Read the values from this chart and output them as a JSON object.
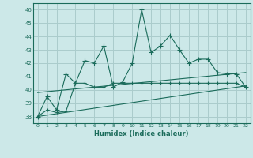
{
  "title": "",
  "xlabel": "Humidex (Indice chaleur)",
  "bg_color": "#cce8e8",
  "grid_color": "#aacccc",
  "line_color": "#1a6b5a",
  "x_values": [
    0,
    1,
    2,
    3,
    4,
    5,
    6,
    7,
    8,
    9,
    10,
    11,
    12,
    13,
    14,
    15,
    16,
    17,
    18,
    19,
    20,
    21,
    22
  ],
  "humidex_main": [
    38.0,
    39.5,
    38.5,
    41.2,
    40.5,
    42.2,
    42.0,
    43.3,
    40.2,
    40.6,
    42.0,
    46.0,
    42.8,
    43.3,
    44.1,
    43.0,
    42.0,
    42.3,
    42.3,
    41.3,
    41.2,
    41.2,
    40.2
  ],
  "humidex_low": [
    38.0,
    38.5,
    38.3,
    38.4,
    40.5,
    40.5,
    40.2,
    40.2,
    40.5,
    40.5,
    40.5,
    40.5,
    40.5,
    40.5,
    40.5,
    40.5,
    40.5,
    40.5,
    40.5,
    40.5,
    40.5,
    40.5,
    40.2
  ],
  "trend1_x": [
    0,
    22
  ],
  "trend1_y": [
    39.8,
    41.3
  ],
  "trend2_x": [
    0,
    22
  ],
  "trend2_y": [
    38.0,
    40.3
  ],
  "ylim": [
    37.5,
    46.5
  ],
  "xlim": [
    -0.5,
    22.5
  ],
  "yticks": [
    38,
    39,
    40,
    41,
    42,
    43,
    44,
    45,
    46
  ],
  "xticks": [
    0,
    1,
    2,
    3,
    4,
    5,
    6,
    7,
    8,
    9,
    10,
    11,
    12,
    13,
    14,
    15,
    16,
    17,
    18,
    19,
    20,
    21,
    22
  ]
}
